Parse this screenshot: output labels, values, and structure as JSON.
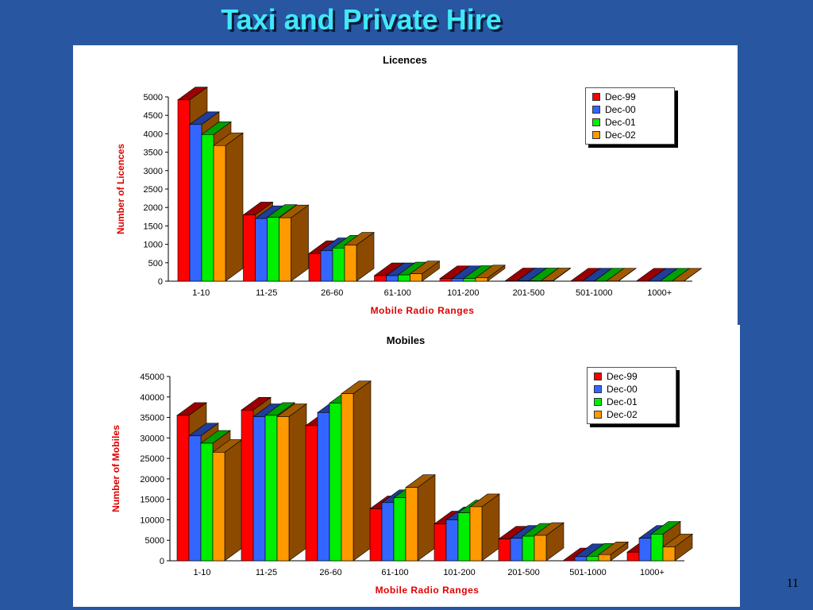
{
  "slide": {
    "title": "Taxi and Private Hire",
    "page_number": "11"
  },
  "colors": {
    "background": "#2856a0",
    "title": "#40e8f8",
    "axis_label": "#e00000",
    "series": [
      "#ff0000",
      "#3366ff",
      "#00ee00",
      "#ff9900"
    ],
    "series_dark": [
      "#9a0000",
      "#1f3d99",
      "#00a000",
      "#a05a00"
    ],
    "side_face": "#8b4a00"
  },
  "chart_data": [
    {
      "type": "bar",
      "title": "Licences",
      "xlabel": "Mobile Radio Ranges",
      "ylabel": "Number of Licences",
      "categories": [
        "1-10",
        "11-25",
        "26-60",
        "61-100",
        "101-200",
        "201-500",
        "501-1000",
        "1000+"
      ],
      "ylim": [
        0,
        5000
      ],
      "yticks": [
        0,
        500,
        1000,
        1500,
        2000,
        2500,
        3000,
        3500,
        4000,
        4500,
        5000
      ],
      "legend_position": "top-right",
      "series": [
        {
          "name": "Dec-99",
          "values": [
            4920,
            1800,
            750,
            150,
            70,
            10,
            5,
            2
          ]
        },
        {
          "name": "Dec-00",
          "values": [
            4250,
            1700,
            830,
            150,
            70,
            10,
            5,
            2
          ]
        },
        {
          "name": "Dec-01",
          "values": [
            3980,
            1730,
            900,
            170,
            75,
            10,
            5,
            2
          ]
        },
        {
          "name": "Dec-02",
          "values": [
            3680,
            1720,
            980,
            200,
            90,
            10,
            5,
            2
          ]
        }
      ]
    },
    {
      "type": "bar",
      "title": "Mobiles",
      "xlabel": "Mobile Radio Ranges",
      "ylabel": "Number of Mobiles",
      "categories": [
        "1-10",
        "11-25",
        "26-60",
        "61-100",
        "101-200",
        "201-500",
        "501-1000",
        "1000+"
      ],
      "ylim": [
        0,
        45000
      ],
      "yticks": [
        0,
        5000,
        10000,
        15000,
        20000,
        25000,
        30000,
        35000,
        40000,
        45000
      ],
      "legend_position": "top-right",
      "series": [
        {
          "name": "Dec-99",
          "values": [
            35500,
            36800,
            33000,
            12700,
            9000,
            5300,
            0,
            2100
          ]
        },
        {
          "name": "Dec-00",
          "values": [
            30500,
            35200,
            36200,
            14200,
            10000,
            5500,
            1000,
            5500
          ]
        },
        {
          "name": "Dec-01",
          "values": [
            28700,
            35500,
            38500,
            15400,
            11700,
            6000,
            1100,
            6500
          ]
        },
        {
          "name": "Dec-02",
          "values": [
            26500,
            35200,
            40800,
            17900,
            13200,
            6200,
            1500,
            3400
          ]
        }
      ]
    }
  ]
}
